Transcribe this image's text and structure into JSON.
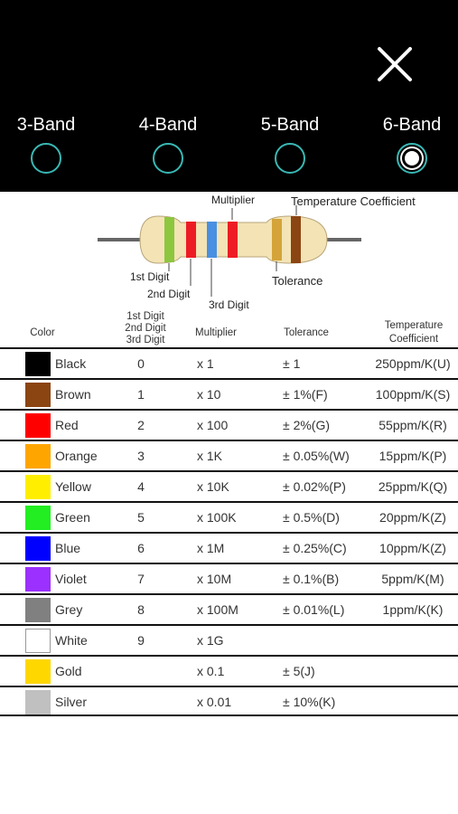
{
  "header": {
    "close_icon": "close-x-icon",
    "bands": [
      {
        "label": "3-Band",
        "selected": false
      },
      {
        "label": "4-Band",
        "selected": false
      },
      {
        "label": "5-Band",
        "selected": false
      },
      {
        "label": "6-Band",
        "selected": true
      }
    ],
    "accent_color": "#39b8b4"
  },
  "diagram": {
    "labels": {
      "multiplier": "Multiplier",
      "temperature_coefficient": "Temperature Coefficient",
      "first_digit": "1st Digit",
      "second_digit": "2nd Digit",
      "third_digit": "3rd Digit",
      "tolerance": "Tolerance"
    },
    "band_colors": [
      "#8dc63f",
      "#ed1c24",
      "#4a90e2",
      "#ed1c24",
      "#d4a43a",
      "#8b4513"
    ],
    "body_color": "#f3e3b5"
  },
  "table": {
    "headers": {
      "color": "Color",
      "digit_1": "1st Digit",
      "digit_2": "2nd Digit",
      "digit_3": "3rd Digit",
      "multiplier": "Multiplier",
      "tolerance": "Tolerance",
      "tc_1": "Temperature",
      "tc_2": "Coefficient"
    },
    "rows": [
      {
        "name": "Black",
        "swatch": "#000000",
        "digit": "0",
        "multiplier": "x 1",
        "tolerance": "± 1",
        "tc": "250ppm/K(U)"
      },
      {
        "name": "Brown",
        "swatch": "#8b4513",
        "digit": "1",
        "multiplier": "x 10",
        "tolerance": "± 1%(F)",
        "tc": "100ppm/K(S)"
      },
      {
        "name": "Red",
        "swatch": "#ff0000",
        "digit": "2",
        "multiplier": "x 100",
        "tolerance": "± 2%(G)",
        "tc": "55ppm/K(R)"
      },
      {
        "name": "Orange",
        "swatch": "#ffa500",
        "digit": "3",
        "multiplier": "x 1K",
        "tolerance": "± 0.05%(W)",
        "tc": "15ppm/K(P)"
      },
      {
        "name": "Yellow",
        "swatch": "#ffee00",
        "digit": "4",
        "multiplier": "x 10K",
        "tolerance": "± 0.02%(P)",
        "tc": "25ppm/K(Q)"
      },
      {
        "name": "Green",
        "swatch": "#22ee22",
        "digit": "5",
        "multiplier": "x 100K",
        "tolerance": "± 0.5%(D)",
        "tc": "20ppm/K(Z)"
      },
      {
        "name": "Blue",
        "swatch": "#0000ff",
        "digit": "6",
        "multiplier": "x 1M",
        "tolerance": "± 0.25%(C)",
        "tc": "10ppm/K(Z)"
      },
      {
        "name": "Violet",
        "swatch": "#9b30ff",
        "digit": "7",
        "multiplier": "x 10M",
        "tolerance": "± 0.1%(B)",
        "tc": "5ppm/K(M)"
      },
      {
        "name": "Grey",
        "swatch": "#808080",
        "digit": "8",
        "multiplier": "x 100M",
        "tolerance": "± 0.01%(L)",
        "tc": "1ppm/K(K)"
      },
      {
        "name": "White",
        "swatch": "#ffffff",
        "digit": "9",
        "multiplier": "x 1G",
        "tolerance": "",
        "tc": ""
      },
      {
        "name": "Gold",
        "swatch": "#ffd700",
        "digit": "",
        "multiplier": "x 0.1",
        "tolerance": "± 5(J)",
        "tc": ""
      },
      {
        "name": "Silver",
        "swatch": "#c0c0c0",
        "digit": "",
        "multiplier": "x 0.01",
        "tolerance": "± 10%(K)",
        "tc": ""
      }
    ]
  }
}
